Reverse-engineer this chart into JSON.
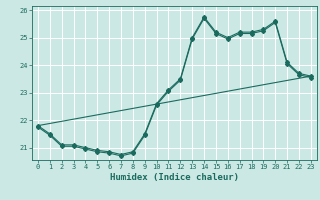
{
  "xlabel": "Humidex (Indice chaleur)",
  "bg_color": "#cce8e4",
  "line_color": "#1a6b5e",
  "grid_color": "#ffffff",
  "xlim": [
    -0.5,
    23.5
  ],
  "ylim": [
    20.55,
    26.15
  ],
  "yticks": [
    21,
    22,
    23,
    24,
    25,
    26
  ],
  "xticks": [
    0,
    1,
    2,
    3,
    4,
    5,
    6,
    7,
    8,
    9,
    10,
    11,
    12,
    13,
    14,
    15,
    16,
    17,
    18,
    19,
    20,
    21,
    22,
    23
  ],
  "line1_x": [
    0,
    1,
    2,
    3,
    4,
    5,
    6,
    7,
    8,
    9,
    10,
    11,
    12,
    13,
    14,
    15,
    16,
    17,
    18,
    19,
    20,
    21,
    22,
    23
  ],
  "line1_y": [
    21.8,
    21.5,
    21.1,
    21.1,
    21.0,
    20.9,
    20.85,
    20.75,
    20.85,
    21.5,
    22.6,
    23.1,
    23.5,
    25.0,
    25.75,
    25.2,
    25.0,
    25.2,
    25.2,
    25.3,
    25.6,
    24.1,
    23.7,
    23.6
  ],
  "line2_x": [
    0,
    1,
    2,
    3,
    4,
    5,
    6,
    7,
    8,
    9,
    10,
    11,
    12,
    13,
    14,
    15,
    16,
    17,
    18,
    19,
    20,
    21,
    22,
    23
  ],
  "line2_y": [
    21.75,
    21.45,
    21.05,
    21.05,
    20.95,
    20.85,
    20.8,
    20.7,
    20.8,
    21.45,
    22.55,
    23.05,
    23.45,
    24.95,
    25.7,
    25.15,
    24.95,
    25.15,
    25.15,
    25.25,
    25.55,
    24.05,
    23.65,
    23.55
  ],
  "line3_x": [
    0,
    23
  ],
  "line3_y": [
    21.8,
    23.6
  ],
  "marker": "D",
  "markersize": 2.0,
  "linewidth": 0.8,
  "tick_fontsize": 5.0,
  "xlabel_fontsize": 6.5
}
